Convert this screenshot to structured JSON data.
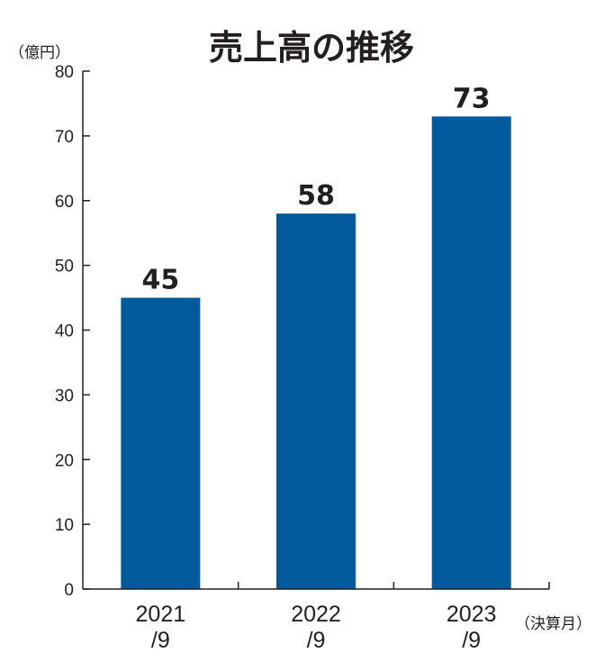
{
  "chart_data": {
    "type": "bar",
    "title": "売上高の推移",
    "ylabel": "（億円）",
    "xlabel": "（決算月）",
    "categories": [
      {
        "line1": "2021",
        "line2": "/9"
      },
      {
        "line1": "2022",
        "line2": "/9"
      },
      {
        "line1": "2023",
        "line2": "/9"
      }
    ],
    "values": [
      45,
      58,
      73
    ],
    "value_labels": [
      "45",
      "58",
      "73"
    ],
    "ylim": [
      0,
      80
    ],
    "yticks": [
      0,
      10,
      20,
      30,
      40,
      50,
      60,
      70,
      80
    ],
    "grid": false,
    "legend": "none",
    "bar_color": "#005a9c"
  }
}
